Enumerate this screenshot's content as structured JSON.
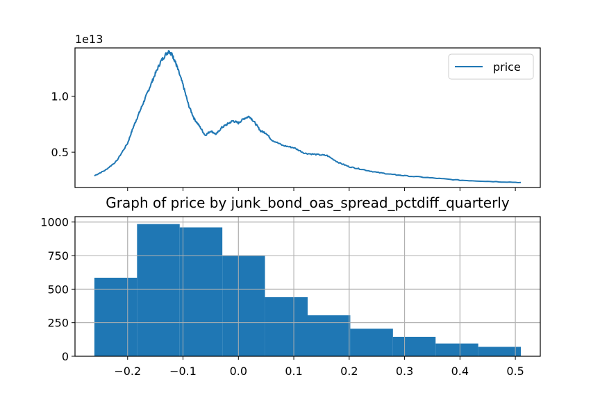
{
  "chart_data": [
    {
      "type": "line",
      "title": "",
      "offset_label": "1e13",
      "legend": [
        "price"
      ],
      "legend_position": "top-right",
      "xlabel": "",
      "ylabel": "",
      "x_range": [
        -0.26,
        0.51
      ],
      "xlim": [
        -0.295,
        0.545
      ],
      "ylim": [
        1.85,
        14.3
      ],
      "yticks": [
        {
          "value": 5.0,
          "label": "0.5"
        },
        {
          "value": 10.0,
          "label": "1.0"
        }
      ],
      "xticks": [
        -0.2,
        -0.1,
        0.0,
        0.1,
        0.2,
        0.3,
        0.4,
        0.5
      ],
      "grid": false,
      "series": [
        {
          "name": "price",
          "color": "#1f77b4",
          "x": [
            -0.26,
            -0.24,
            -0.22,
            -0.2,
            -0.19,
            -0.18,
            -0.17,
            -0.16,
            -0.15,
            -0.14,
            -0.13,
            -0.125,
            -0.12,
            -0.115,
            -0.11,
            -0.1,
            -0.09,
            -0.08,
            -0.07,
            -0.06,
            -0.05,
            -0.04,
            -0.03,
            -0.02,
            -0.01,
            0.0,
            0.01,
            0.02,
            0.03,
            0.04,
            0.05,
            0.06,
            0.08,
            0.1,
            0.12,
            0.14,
            0.16,
            0.18,
            0.2,
            0.22,
            0.25,
            0.28,
            0.3,
            0.35,
            0.4,
            0.45,
            0.51
          ],
          "y": [
            2.9,
            3.4,
            4.2,
            5.8,
            7.2,
            8.4,
            9.6,
            10.8,
            12.0,
            13.1,
            13.8,
            14.0,
            13.7,
            13.2,
            12.5,
            11.0,
            9.2,
            8.0,
            7.3,
            6.5,
            6.9,
            6.6,
            7.2,
            7.5,
            7.8,
            7.6,
            8.0,
            8.2,
            7.6,
            6.9,
            6.7,
            6.1,
            5.6,
            5.4,
            4.9,
            4.8,
            4.7,
            4.1,
            3.7,
            3.5,
            3.2,
            3.0,
            2.9,
            2.7,
            2.5,
            2.4,
            2.3
          ]
        }
      ]
    },
    {
      "type": "bar",
      "title": "Graph of price by junk_bond_oas_spread_pctdiff_quarterly",
      "xlabel": "",
      "ylabel": "",
      "bin_edges": [
        -0.26,
        -0.183,
        -0.106,
        -0.029,
        0.048,
        0.125,
        0.202,
        0.279,
        0.356,
        0.433,
        0.51
      ],
      "values": [
        585,
        985,
        960,
        750,
        440,
        305,
        205,
        145,
        95,
        70
      ],
      "color": "#1f77b4",
      "xlim": [
        -0.295,
        0.545
      ],
      "ylim": [
        0,
        1040
      ],
      "xticks": [
        {
          "value": -0.2,
          "label": "−0.2"
        },
        {
          "value": -0.1,
          "label": "−0.1"
        },
        {
          "value": 0.0,
          "label": "0.0"
        },
        {
          "value": 0.1,
          "label": "0.1"
        },
        {
          "value": 0.2,
          "label": "0.2"
        },
        {
          "value": 0.3,
          "label": "0.3"
        },
        {
          "value": 0.4,
          "label": "0.4"
        },
        {
          "value": 0.5,
          "label": "0.5"
        }
      ],
      "yticks": [
        {
          "value": 0,
          "label": "0"
        },
        {
          "value": 250,
          "label": "250"
        },
        {
          "value": 500,
          "label": "500"
        },
        {
          "value": 750,
          "label": "750"
        },
        {
          "value": 1000,
          "label": "1000"
        }
      ],
      "grid": true
    }
  ]
}
